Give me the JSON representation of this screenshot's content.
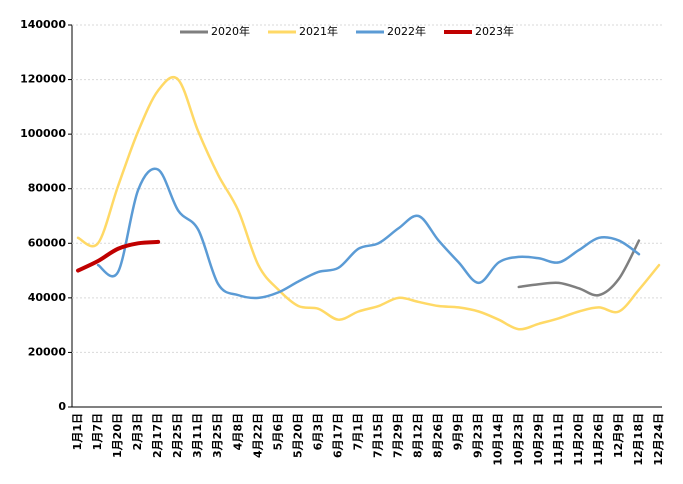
{
  "chart_data": {
    "type": "line",
    "categories": [
      "1月1日",
      "1月7日",
      "1月20日",
      "2月3日",
      "2月17日",
      "2月25日",
      "3月11日",
      "3月25日",
      "4月8日",
      "4月22日",
      "5月6日",
      "5月20日",
      "6月3日",
      "6月17日",
      "7月1日",
      "7月15日",
      "7月29日",
      "8月12日",
      "8月26日",
      "9月9日",
      "9月23日",
      "10月14日",
      "10月23日",
      "10月29日",
      "11月11日",
      "11月20日",
      "11月26日",
      "12月9日",
      "12月18日",
      "12月24日"
    ],
    "series": [
      {
        "name": "2020年",
        "color": "#7f7f7f",
        "values": [
          null,
          null,
          null,
          null,
          null,
          null,
          null,
          null,
          null,
          null,
          null,
          null,
          null,
          null,
          null,
          null,
          null,
          null,
          null,
          null,
          null,
          null,
          44000,
          45000,
          45500,
          43500,
          41000,
          47000,
          61000,
          null
        ]
      },
      {
        "name": "2021年",
        "color": "#ffd966",
        "values": [
          62000,
          60000,
          81000,
          101000,
          116000,
          120000,
          101000,
          85000,
          72000,
          52000,
          43000,
          37000,
          36000,
          32000,
          35000,
          37000,
          40000,
          38500,
          37000,
          36500,
          35000,
          32000,
          28500,
          30500,
          32500,
          35000,
          36500,
          35000,
          43000,
          52000
        ]
      },
      {
        "name": "2022年",
        "color": "#5b9bd5",
        "values": [
          null,
          52000,
          49500,
          79500,
          87000,
          72000,
          65000,
          45000,
          41000,
          40000,
          42000,
          46000,
          49500,
          51000,
          58000,
          60000,
          65500,
          70000,
          61000,
          53000,
          45500,
          53000,
          55000,
          54500,
          53000,
          57500,
          62000,
          61000,
          56000,
          null
        ]
      },
      {
        "name": "2023年",
        "color": "#c00000",
        "values": [
          50000,
          53500,
          58000,
          60000,
          60500,
          null,
          null,
          null,
          null,
          null,
          null,
          null,
          null,
          null,
          null,
          null,
          null,
          null,
          null,
          null,
          null,
          null,
          null,
          null,
          null,
          null,
          null,
          null,
          null,
          null
        ]
      }
    ],
    "ylim": [
      0,
      140000
    ],
    "yticks": [
      0,
      20000,
      40000,
      60000,
      80000,
      100000,
      120000,
      140000
    ],
    "grid": true,
    "legend": "top"
  }
}
